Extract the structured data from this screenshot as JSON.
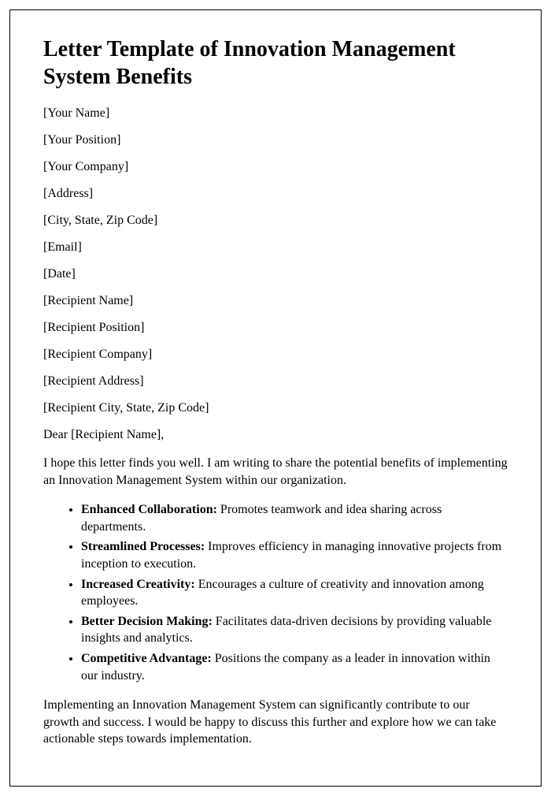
{
  "title": "Letter Template of Innovation Management System Benefits",
  "sender_fields": [
    "[Your Name]",
    "[Your Position]",
    "[Your Company]",
    "[Address]",
    "[City, State, Zip Code]",
    "[Email]",
    "[Date]"
  ],
  "recipient_fields": [
    "[Recipient Name]",
    "[Recipient Position]",
    "[Recipient Company]",
    "[Recipient Address]",
    "[Recipient City, State, Zip Code]"
  ],
  "salutation": "Dear [Recipient Name],",
  "intro_paragraph": "I hope this letter finds you well. I am writing to share the potential benefits of implementing an Innovation Management System within our organization.",
  "benefits": [
    {
      "label": "Enhanced Collaboration:",
      "text": " Promotes teamwork and idea sharing across departments."
    },
    {
      "label": "Streamlined Processes:",
      "text": " Improves efficiency in managing innovative projects from inception to execution."
    },
    {
      "label": "Increased Creativity:",
      "text": " Encourages a culture of creativity and innovation among employees."
    },
    {
      "label": "Better Decision Making:",
      "text": " Facilitates data-driven decisions by providing valuable insights and analytics."
    },
    {
      "label": "Competitive Advantage:",
      "text": " Positions the company as a leader in innovation within our industry."
    }
  ],
  "closing_paragraph": "Implementing an Innovation Management System can significantly contribute to our growth and success. I would be happy to discuss this further and explore how we can take actionable steps towards implementation.",
  "style": {
    "font_family": "Times New Roman",
    "title_fontsize": 28,
    "body_fontsize": 16,
    "text_color": "#000000",
    "background_color": "#ffffff",
    "border_color": "#000000"
  }
}
